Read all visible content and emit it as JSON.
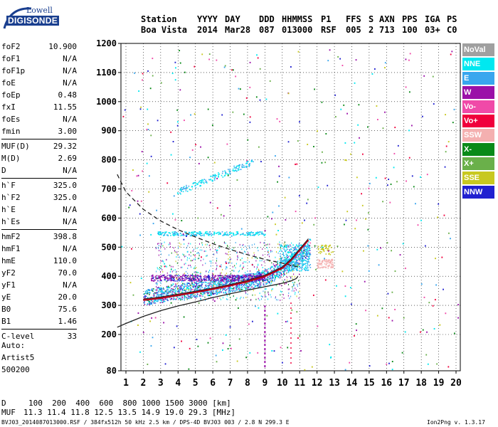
{
  "logo": {
    "line1": "Lowell",
    "line2": "DIGISONDE"
  },
  "header": {
    "station_label": "Station",
    "station_value": "Boa Vista",
    "yyyy_label": "YYYY",
    "yyyy_value": "2014",
    "day_label": "DAY",
    "day_value": "Mar28",
    "ddd_label": "DDD",
    "ddd_value": "087",
    "time_label": "HHMMSS",
    "time_value": "013000",
    "p1_label": "P1",
    "p1_value": "RSF",
    "ffs_label": "FFS",
    "ffs_value": "005",
    "s_label": "S",
    "s_value": "2",
    "axn_label": "AXN",
    "axn_value": "713",
    "pps_label": "PPS",
    "pps_value": "100",
    "iga_label": "IGA",
    "iga_value": "03+",
    "ps_label": "PS",
    "ps_value": "C0"
  },
  "params": {
    "group1": [
      {
        "label": "foF2",
        "value": "10.900"
      },
      {
        "label": "foF1",
        "value": "N/A"
      },
      {
        "label": "foF1p",
        "value": "N/A"
      },
      {
        "label": "foE",
        "value": "N/A"
      },
      {
        "label": "foEp",
        "value": "0.48"
      },
      {
        "label": "fxI",
        "value": "11.55"
      },
      {
        "label": "foEs",
        "value": "N/A"
      },
      {
        "label": "fmin",
        "value": "3.00"
      }
    ],
    "group2": [
      {
        "label": "MUF(D)",
        "value": "29.32"
      },
      {
        "label": "M(D)",
        "value": "2.69"
      },
      {
        "label": "D",
        "value": "N/A"
      }
    ],
    "group3": [
      {
        "label": "h`F",
        "value": "325.0"
      },
      {
        "label": "h`F2",
        "value": "325.0"
      },
      {
        "label": "h`E",
        "value": "N/A"
      },
      {
        "label": "h`Es",
        "value": "N/A"
      }
    ],
    "group4": [
      {
        "label": "hmF2",
        "value": "398.8"
      },
      {
        "label": "hmF1",
        "value": "N/A"
      },
      {
        "label": "hmE",
        "value": "110.0"
      },
      {
        "label": "yF2",
        "value": "70.0"
      },
      {
        "label": "yF1",
        "value": "N/A"
      },
      {
        "label": "yE",
        "value": "20.0"
      },
      {
        "label": "B0",
        "value": "75.6"
      },
      {
        "label": "B1",
        "value": "1.46"
      }
    ],
    "group5": [
      {
        "label": "C-level",
        "value": "33"
      }
    ]
  },
  "autoscaling": {
    "line1": "Auto:",
    "line2": "Artist5",
    "line3": "500200"
  },
  "legend": [
    {
      "label": "NoVal",
      "color": "#a0a0a0"
    },
    {
      "label": "NNE",
      "color": "#00e8f0"
    },
    {
      "label": "E",
      "color": "#39a6ee"
    },
    {
      "label": "W",
      "color": "#9b10a8"
    },
    {
      "label": "Vo-",
      "color": "#f04aa8"
    },
    {
      "label": "Vo+",
      "color": "#f0003c"
    },
    {
      "label": "SSW",
      "color": "#f4b0b0"
    },
    {
      "label": "X-",
      "color": "#0a8a18"
    },
    {
      "label": "X+",
      "color": "#6ab04a"
    },
    {
      "label": "SSE",
      "color": "#c8c820"
    },
    {
      "label": "NNW",
      "color": "#2020d0"
    }
  ],
  "chart_data": {
    "type": "scatter",
    "xlim": [
      0.5,
      20.2
    ],
    "ylim": [
      80,
      1200
    ],
    "x_ticks": [
      "1",
      "2",
      "3",
      "4",
      "5",
      "6",
      "7",
      "8",
      "9",
      "10",
      "11",
      "12",
      "13",
      "14",
      "15",
      "16",
      "17",
      "18",
      "19",
      "20"
    ],
    "y_ticks": [
      "80",
      "200",
      "300",
      "400",
      "500",
      "600",
      "700",
      "800",
      "900",
      "1000",
      "1100",
      "1200"
    ],
    "grid": true,
    "profile_solid": [
      [
        0.5,
        225
      ],
      [
        1,
        238
      ],
      [
        2,
        262
      ],
      [
        3,
        282
      ],
      [
        4,
        298
      ],
      [
        5,
        312
      ],
      [
        6,
        327
      ],
      [
        7,
        340
      ],
      [
        8,
        352
      ],
      [
        9,
        364
      ],
      [
        10,
        376
      ],
      [
        10.5,
        384
      ],
      [
        10.8,
        392
      ],
      [
        10.9,
        400
      ]
    ],
    "profile_dashed": [
      [
        0.5,
        750
      ],
      [
        1,
        690
      ],
      [
        2,
        630
      ],
      [
        3,
        590
      ],
      [
        4,
        560
      ],
      [
        5,
        535
      ],
      [
        6,
        512
      ],
      [
        7,
        492
      ],
      [
        8,
        474
      ],
      [
        9,
        458
      ],
      [
        10,
        445
      ],
      [
        10.9,
        432
      ]
    ],
    "trace_fit": [
      [
        2,
        318
      ],
      [
        3,
        325
      ],
      [
        4,
        335
      ],
      [
        5,
        345
      ],
      [
        6,
        356
      ],
      [
        7,
        368
      ],
      [
        8,
        382
      ],
      [
        9,
        400
      ],
      [
        10,
        428
      ],
      [
        10.5,
        455
      ],
      [
        11,
        490
      ],
      [
        11.5,
        525
      ]
    ]
  },
  "footer": {
    "d_label": "D",
    "d_values": "100  200  400  600  800 1000 1500 3000 [km]",
    "muf_label": "MUF",
    "muf_values": "11.3 11.4 11.8 12.5 13.5 14.9 19.0 29.3 [MHz]",
    "filename": "BVJ03_2014087013000.RSF / 384fx512h 50 kHz 2.5 km / DPS-4D BVJ03 003 / 2.8 N 299.3 E",
    "version": "Ion2Png v. 1.3.17"
  }
}
